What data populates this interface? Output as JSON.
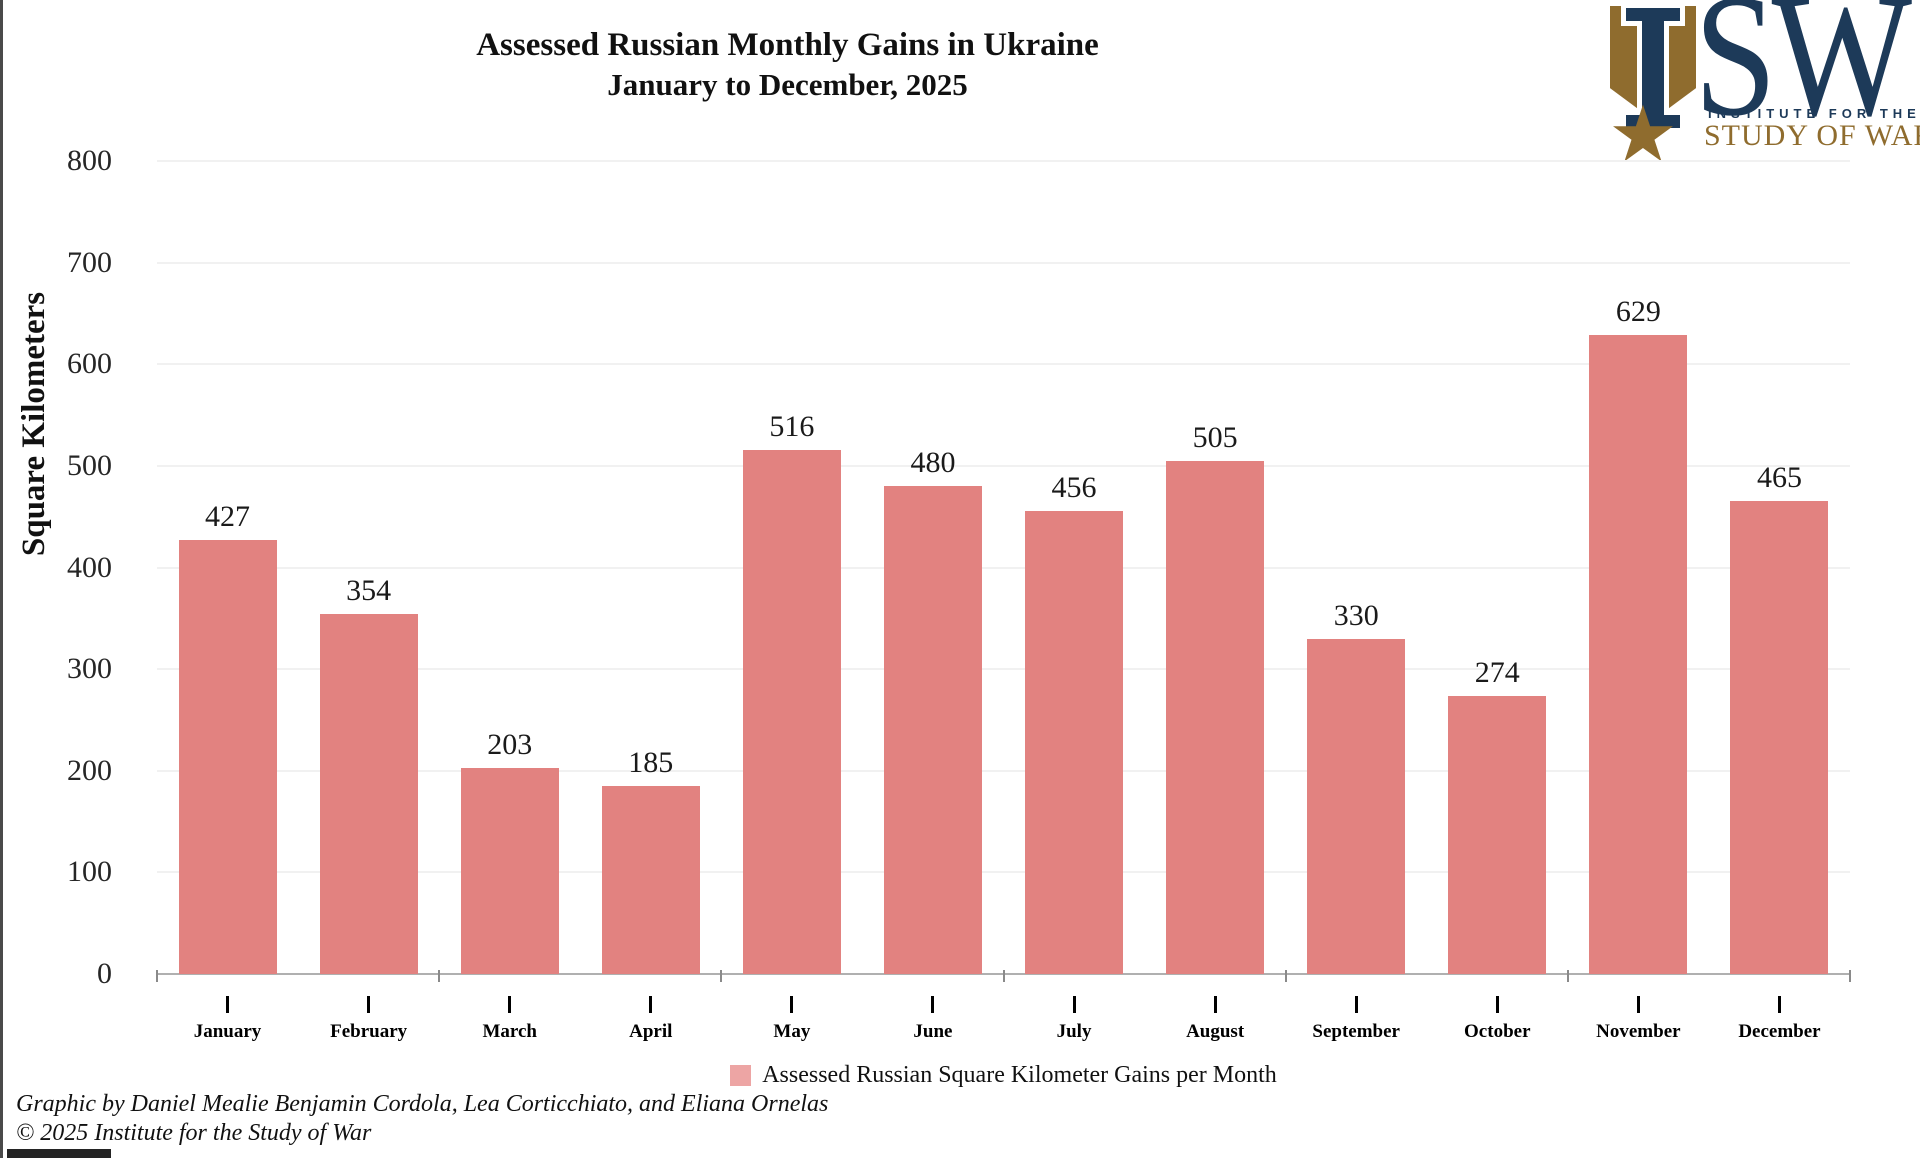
{
  "title": {
    "line1": "Assessed Russian Monthly Gains in Ukraine",
    "line2": "January to December, 2025"
  },
  "logo": {
    "monogram_i": "I",
    "monogram_sw": "SW",
    "tagline_top": "INSTITUTE FOR THE",
    "tagline_bottom": "STUDY OF WAR",
    "star_glyph": "★",
    "navy_color": "#1d3a59",
    "gold_color": "#8f6c2e"
  },
  "chart_data": {
    "type": "bar",
    "title": "Assessed Russian Monthly Gains in Ukraine, January to December, 2025",
    "categories": [
      "January",
      "February",
      "March",
      "April",
      "May",
      "June",
      "July",
      "August",
      "September",
      "October",
      "November",
      "December"
    ],
    "values": [
      427,
      354,
      203,
      185,
      516,
      480,
      456,
      505,
      330,
      274,
      629,
      465
    ],
    "ylabel": "Square Kilometers",
    "xlabel": "",
    "ylim": [
      0,
      800
    ],
    "ytick_interval": 100,
    "bar_color": "#e28280",
    "grid": true,
    "legend_position": "bottom-center",
    "legend_label": "Assessed Russian Square Kilometer Gains per Month"
  },
  "legend": {
    "label": "Assessed Russian Square Kilometer Gains per Month",
    "swatch_color": "#eda5a4"
  },
  "footer": {
    "credit_line": "Graphic by Daniel Mealie Benjamin Cordola, Lea Corticchiato, and Eliana Ornelas",
    "copyright_line": "© 2025 Institute for the Study of War"
  }
}
